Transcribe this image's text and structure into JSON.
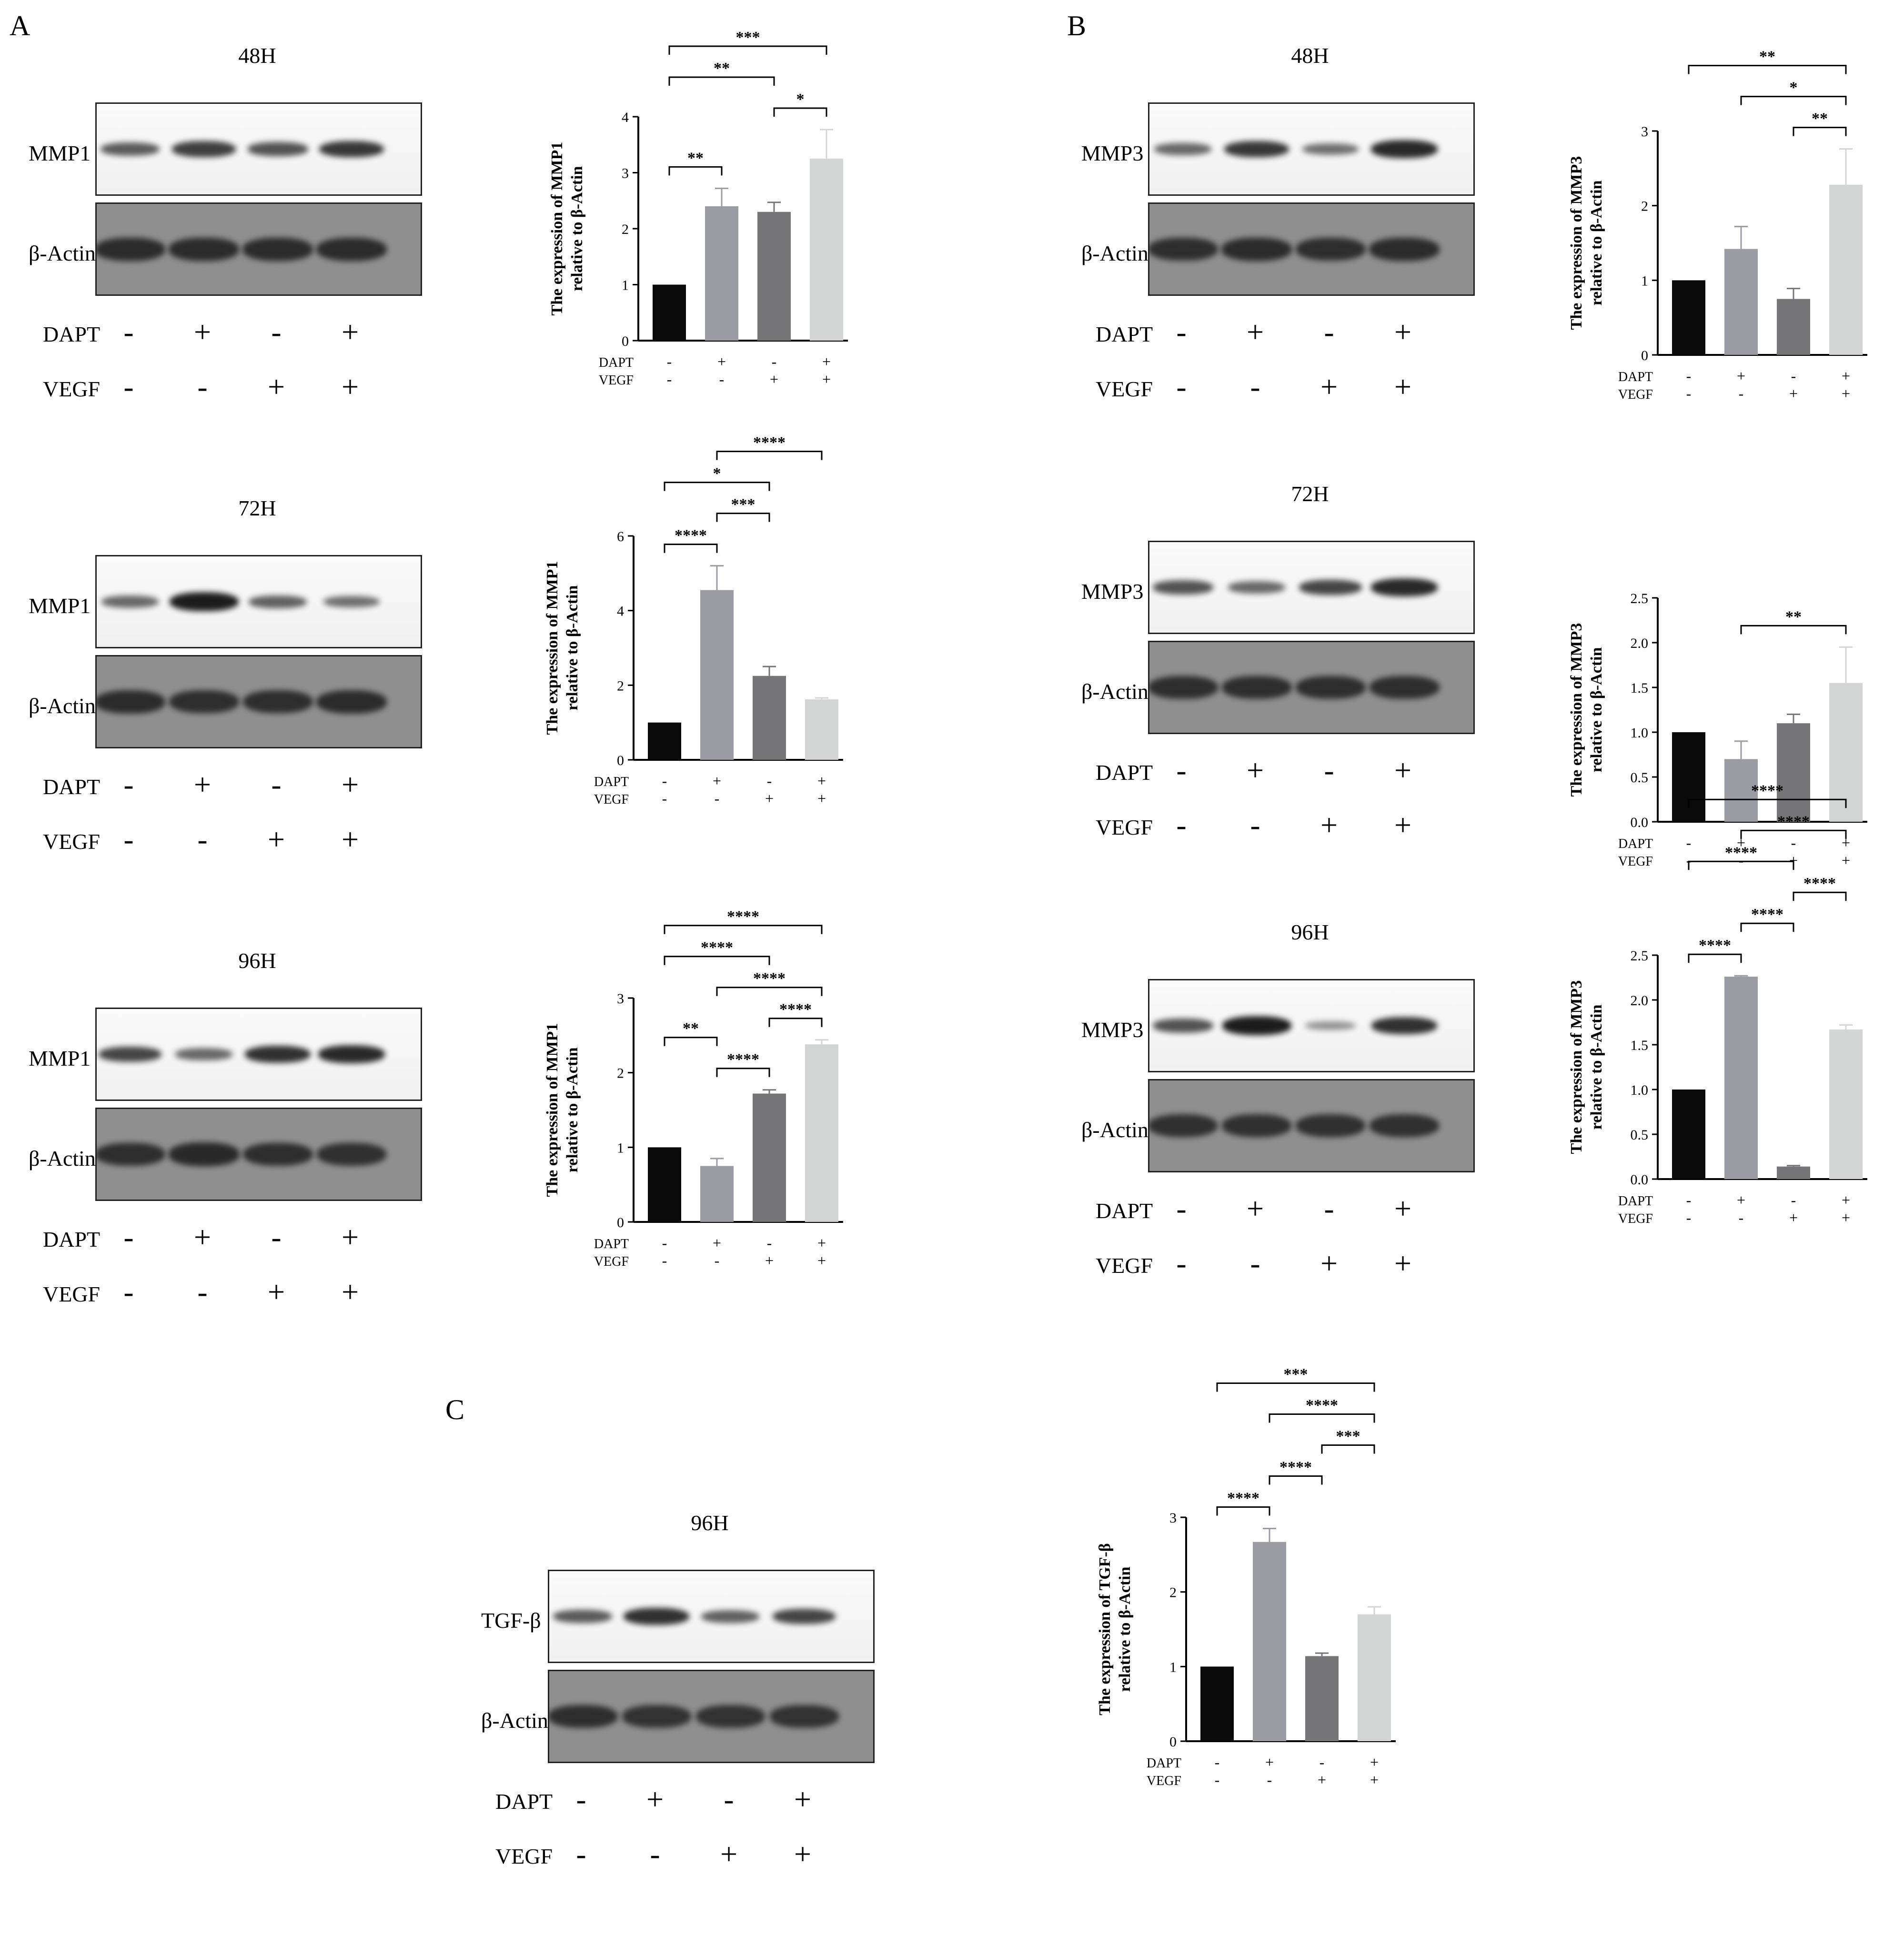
{
  "panels": {
    "A": "A",
    "B": "B",
    "C": "C"
  },
  "conditions": {
    "dapt_label": "DAPT",
    "vegf_label": "VEGF",
    "dapt_signs": [
      "-",
      "+",
      "-",
      "+"
    ],
    "vegf_signs": [
      "-",
      "-",
      "+",
      "+"
    ]
  },
  "blots": [
    {
      "id": "A48",
      "time": "48H",
      "target": "MMP1",
      "control": "β-Actin",
      "intensity": [
        0.55,
        0.75,
        0.6,
        0.8
      ],
      "actin": [
        0.9,
        0.9,
        0.9,
        0.9
      ]
    },
    {
      "id": "A72",
      "time": "72H",
      "target": "MMP1",
      "control": "β-Actin",
      "intensity": [
        0.45,
        1.0,
        0.5,
        0.4
      ],
      "actin": [
        0.9,
        0.85,
        0.85,
        0.9
      ]
    },
    {
      "id": "A96",
      "time": "96H",
      "target": "MMP1",
      "control": "β-Actin",
      "intensity": [
        0.7,
        0.45,
        0.85,
        0.9
      ],
      "actin": [
        0.85,
        0.95,
        0.85,
        0.8
      ]
    },
    {
      "id": "B48",
      "time": "48H",
      "target": "MMP3",
      "control": "β-Actin",
      "intensity": [
        0.45,
        0.8,
        0.4,
        0.9
      ],
      "actin": [
        0.85,
        0.9,
        0.85,
        0.9
      ]
    },
    {
      "id": "B72",
      "time": "72H",
      "target": "MMP3",
      "control": "β-Actin",
      "intensity": [
        0.6,
        0.45,
        0.7,
        0.9
      ],
      "actin": [
        0.85,
        0.85,
        0.85,
        0.85
      ]
    },
    {
      "id": "B96",
      "time": "96H",
      "target": "MMP3",
      "control": "β-Actin",
      "intensity": [
        0.6,
        1.0,
        0.15,
        0.85
      ],
      "actin": [
        0.8,
        0.8,
        0.8,
        0.8
      ]
    },
    {
      "id": "C96",
      "time": "96H",
      "target": "TGF-β",
      "control": "β-Actin",
      "intensity": [
        0.55,
        0.85,
        0.5,
        0.7
      ],
      "actin": [
        0.85,
        0.75,
        0.75,
        0.75
      ]
    }
  ],
  "bar_colors": [
    "#0a0a0a",
    "#9b9ba3",
    "#757577",
    "#d3d5d5"
  ],
  "chart_data": [
    {
      "id": "A48",
      "type": "bar",
      "ylabel_line1": "The expression of MMP1",
      "ylabel_line2": "relative to β-Actin",
      "categories": [
        "DAPT- VEGF-",
        "DAPT+ VEGF-",
        "DAPT- VEGF+",
        "DAPT+ VEGF+"
      ],
      "values": [
        1,
        2.4,
        2.3,
        3.25
      ],
      "errors": [
        0,
        0.32,
        0.17,
        0.52
      ],
      "ylim": [
        0,
        4
      ],
      "yticks": [
        "0",
        "1",
        "2",
        "3",
        "4"
      ],
      "ytick_values": [
        0,
        1,
        2,
        3,
        4
      ],
      "sig": [
        {
          "a": 0,
          "b": 3,
          "label": "***"
        },
        {
          "a": 0,
          "b": 2,
          "label": "**"
        },
        {
          "a": 2,
          "b": 3,
          "label": "*"
        },
        {
          "a": 0,
          "b": 1,
          "label": "**"
        }
      ]
    },
    {
      "id": "A72",
      "type": "bar",
      "ylabel_line1": "The expression of MMP1",
      "ylabel_line2": "relative to β-Actin",
      "categories": [
        "DAPT- VEGF-",
        "DAPT+ VEGF-",
        "DAPT- VEGF+",
        "DAPT+ VEGF+"
      ],
      "values": [
        1,
        4.55,
        2.25,
        1.62
      ],
      "errors": [
        0,
        0.65,
        0.25,
        0.04
      ],
      "ylim": [
        0,
        6
      ],
      "yticks": [
        "0",
        "2",
        "4",
        "6"
      ],
      "ytick_values": [
        0,
        2,
        4,
        6
      ],
      "sig": [
        {
          "a": 0,
          "b": 2,
          "label": "*"
        },
        {
          "a": 1,
          "b": 3,
          "label": "****"
        },
        {
          "a": 0,
          "b": 1,
          "label": "****"
        },
        {
          "a": 1,
          "b": 2,
          "label": "***"
        }
      ]
    },
    {
      "id": "A96",
      "type": "bar",
      "ylabel_line1": "The expression of MMP1",
      "ylabel_line2": "relative to β-Actin",
      "categories": [
        "DAPT- VEGF-",
        "DAPT+ VEGF-",
        "DAPT- VEGF+",
        "DAPT+ VEGF+"
      ],
      "values": [
        1,
        0.75,
        1.72,
        2.38
      ],
      "errors": [
        0,
        0.1,
        0.05,
        0.06
      ],
      "ylim": [
        0,
        3
      ],
      "yticks": [
        "0",
        "1",
        "2",
        "3"
      ],
      "ytick_values": [
        0,
        1,
        2,
        3
      ],
      "sig": [
        {
          "a": 1,
          "b": 3,
          "label": "****"
        },
        {
          "a": 0,
          "b": 3,
          "label": "****"
        },
        {
          "a": 1,
          "b": 2,
          "label": "****"
        },
        {
          "a": 2,
          "b": 3,
          "label": "****"
        },
        {
          "a": 0,
          "b": 2,
          "label": "****"
        },
        {
          "a": 0,
          "b": 1,
          "label": "**"
        }
      ]
    },
    {
      "id": "B48",
      "type": "bar",
      "ylabel_line1": "The expression of MMP3",
      "ylabel_line2": "relative to β-Actin",
      "categories": [
        "DAPT- VEGF-",
        "DAPT+ VEGF-",
        "DAPT- VEGF+",
        "DAPT+ VEGF+"
      ],
      "values": [
        1,
        1.42,
        0.75,
        2.28
      ],
      "errors": [
        0,
        0.3,
        0.14,
        0.48
      ],
      "ylim": [
        0,
        3
      ],
      "yticks": [
        "0",
        "1",
        "2",
        "3"
      ],
      "ytick_values": [
        0,
        1,
        2,
        3
      ],
      "sig": [
        {
          "a": 0,
          "b": 3,
          "label": "**"
        },
        {
          "a": 2,
          "b": 3,
          "label": "**"
        },
        {
          "a": 1,
          "b": 3,
          "label": "*"
        }
      ]
    },
    {
      "id": "B72",
      "type": "bar",
      "ylabel_line1": "The expression of MMP3",
      "ylabel_line2": "relative to β-Actin",
      "categories": [
        "DAPT- VEGF-",
        "DAPT+ VEGF-",
        "DAPT- VEGF+",
        "DAPT+ VEGF+"
      ],
      "values": [
        1,
        0.7,
        1.1,
        1.55
      ],
      "errors": [
        0,
        0.2,
        0.1,
        0.4
      ],
      "ylim": [
        0,
        2.5
      ],
      "yticks": [
        "0.0",
        "0.5",
        "1.0",
        "1.5",
        "2.0",
        "2.5"
      ],
      "ytick_values": [
        0,
        0.5,
        1,
        1.5,
        2,
        2.5
      ],
      "sig": [
        {
          "a": 1,
          "b": 3,
          "label": "**"
        }
      ]
    },
    {
      "id": "B96",
      "type": "bar",
      "ylabel_line1": "The expression of MMP3",
      "ylabel_line2": "relative to β-Actin",
      "categories": [
        "DAPT- VEGF-",
        "DAPT+ VEGF-",
        "DAPT- VEGF+",
        "DAPT+ VEGF+"
      ],
      "values": [
        1,
        2.26,
        0.14,
        1.67
      ],
      "errors": [
        0,
        0.01,
        0.01,
        0.05
      ],
      "ylim": [
        0,
        2.5
      ],
      "yticks": [
        "0.0",
        "0.5",
        "1.0",
        "1.5",
        "2.0",
        "2.5"
      ],
      "ytick_values": [
        0,
        0.5,
        1,
        1.5,
        2,
        2.5
      ],
      "sig": [
        {
          "a": 0,
          "b": 3,
          "label": "****"
        },
        {
          "a": 0,
          "b": 2,
          "label": "****"
        },
        {
          "a": 1,
          "b": 3,
          "label": "****"
        },
        {
          "a": 0,
          "b": 1,
          "label": "****"
        },
        {
          "a": 1,
          "b": 2,
          "label": "****"
        },
        {
          "a": 2,
          "b": 3,
          "label": "****"
        }
      ]
    },
    {
      "id": "C96",
      "type": "bar",
      "ylabel_line1": "The expression of TGF-β",
      "ylabel_line2": "relative to β-Actin",
      "categories": [
        "DAPT- VEGF-",
        "DAPT+ VEGF-",
        "DAPT- VEGF+",
        "DAPT+ VEGF+"
      ],
      "values": [
        1,
        2.67,
        1.14,
        1.7
      ],
      "errors": [
        0,
        0.18,
        0.04,
        0.1
      ],
      "ylim": [
        0,
        3
      ],
      "yticks": [
        "0",
        "1",
        "2",
        "3"
      ],
      "ytick_values": [
        0,
        1,
        2,
        3
      ],
      "sig": [
        {
          "a": 1,
          "b": 3,
          "label": "****"
        },
        {
          "a": 0,
          "b": 3,
          "label": "***"
        },
        {
          "a": 0,
          "b": 1,
          "label": "****"
        },
        {
          "a": 1,
          "b": 2,
          "label": "****"
        },
        {
          "a": 2,
          "b": 3,
          "label": "***"
        }
      ]
    }
  ]
}
